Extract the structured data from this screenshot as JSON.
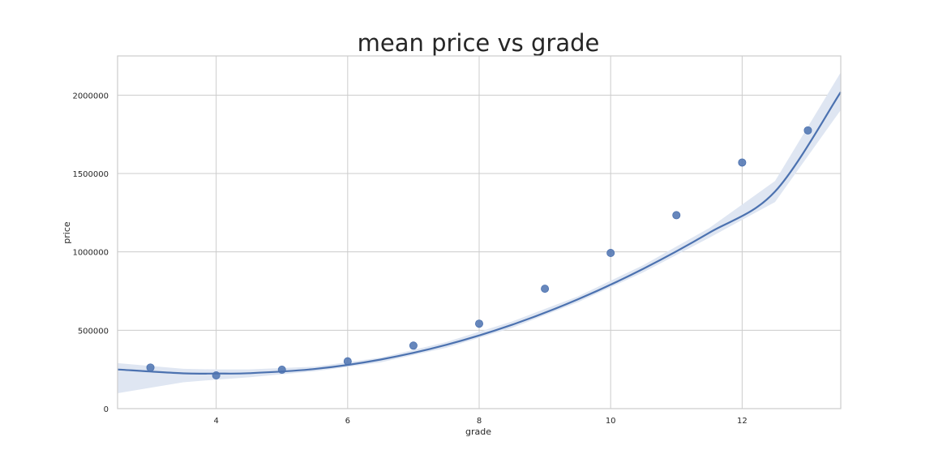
{
  "chart_data": {
    "type": "scatter",
    "title": "mean price vs grade",
    "xlabel": "grade",
    "ylabel": "price",
    "xlim": [
      2.5,
      13.5
    ],
    "ylim": [
      0,
      2250000
    ],
    "xticks": [
      4,
      6,
      8,
      10,
      12
    ],
    "xtick_labels": [
      "4",
      "6",
      "8",
      "10",
      "12"
    ],
    "yticks": [
      0,
      500000,
      1000000,
      1500000,
      2000000
    ],
    "ytick_labels": [
      "0",
      "500000",
      "1000000",
      "1500000",
      "2000000"
    ],
    "grid": true,
    "series": [
      {
        "kind": "scatter",
        "x": [
          3,
          4,
          5,
          6,
          7,
          8,
          9,
          10,
          11,
          12,
          13
        ],
        "y": [
          262000,
          212000,
          248000,
          302000,
          402000,
          542000,
          765000,
          993000,
          1234000,
          1570000,
          1775000
        ]
      },
      {
        "kind": "fitted_curve",
        "x": [
          2.5,
          3.5,
          4,
          4.5,
          5.5,
          6.5,
          7.5,
          8.5,
          9.5,
          10.5,
          11.5,
          12.5,
          13.5
        ],
        "y": [
          250000,
          225000,
          224000,
          226000,
          253000,
          313000,
          407000,
          535000,
          697000,
          893000,
          1122000,
          1385000,
          2020000
        ],
        "ci_lower": [
          98000,
          168000,
          185000,
          200000,
          238000,
          295000,
          388000,
          515000,
          678000,
          870000,
          1090000,
          1318000,
          1905000
        ],
        "ci_upper": [
          290000,
          254000,
          250000,
          250000,
          268000,
          325000,
          425000,
          556000,
          716000,
          916000,
          1152000,
          1452000,
          2145000
        ]
      }
    ],
    "colors": {
      "series": "#4c72b0",
      "ci_band": "#dfe6f2",
      "grid": "#cccccc"
    }
  }
}
